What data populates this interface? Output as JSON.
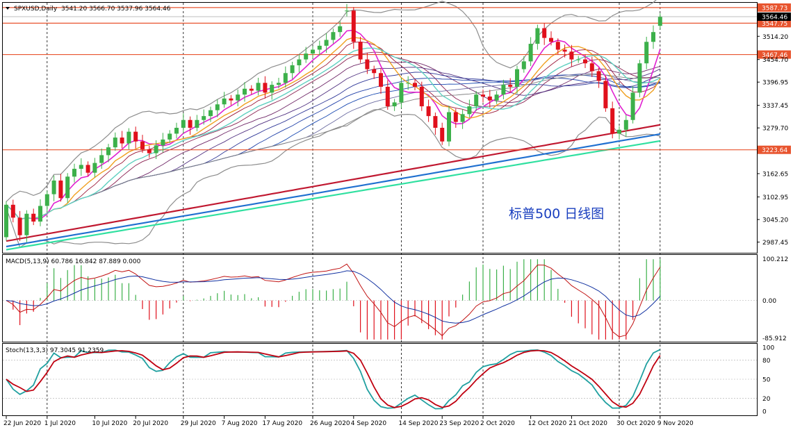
{
  "header": {
    "symbol_label": "SPXUSD,Daily",
    "ohlc_label": "3541.20 3566.70 3537.96 3564.46",
    "collapse_icon": "triangle-down-icon"
  },
  "annotation": "标普500 日线图",
  "colors": {
    "bull": "#3cb04a",
    "bear": "#e0101c",
    "hline": "#e8542e",
    "ma_magenta": "#e020d0",
    "ma_orange": "#f0a020",
    "ma_cyan": "#60d0c0",
    "ma_200_red": "#c01830",
    "ma_blue": "#2070d0",
    "ma_green": "#30e0a0",
    "bollinger": "#8c8c8c",
    "macd_signal": "#c01010",
    "macd_line": "#1030a0",
    "stoch_k": "#20a0a0",
    "stoch_d": "#c00010"
  },
  "chart_data": {
    "type": "candlestick",
    "title": "SPXUSD,Daily",
    "price_axis": {
      "ylim": [
        2960,
        3600
      ],
      "ticks": [
        "3514.20",
        "3454.70",
        "3396.95",
        "3337.45",
        "3279.70",
        "3162.65",
        "3102.95",
        "3045.20",
        "2987.45"
      ]
    },
    "horizontal_lines": [
      {
        "value": 3587.73,
        "label": "3587.73"
      },
      {
        "value": 3547.75,
        "label": "3547.75"
      },
      {
        "value": 3467.46,
        "label": "3467.46"
      },
      {
        "value": 3223.64,
        "label": "3223.64"
      }
    ],
    "current_price": {
      "value": 3564.46,
      "label": "3564.46"
    },
    "x_axis_labels": [
      "22 Jun 2020",
      "1 Jul 2020",
      "10 Jul 2020",
      "20 Jul 2020",
      "29 Jul 2020",
      "7 Aug 2020",
      "17 Aug 2020",
      "26 Aug 2020",
      "4 Sep 2020",
      "14 Sep 2020",
      "23 Sep 2020",
      "2 Oct 2020",
      "12 Oct 2020",
      "21 Oct 2020",
      "30 Oct 2020",
      "9 Nov 2020"
    ],
    "closes": [
      3083,
      3050,
      3005,
      3060,
      3040,
      3080,
      3110,
      3145,
      3100,
      3155,
      3175,
      3185,
      3165,
      3190,
      3210,
      3230,
      3255,
      3240,
      3270,
      3245,
      3225,
      3215,
      3235,
      3250,
      3265,
      3280,
      3300,
      3280,
      3300,
      3310,
      3325,
      3340,
      3355,
      3350,
      3365,
      3380,
      3375,
      3395,
      3370,
      3390,
      3395,
      3420,
      3440,
      3455,
      3470,
      3480,
      3490,
      3505,
      3525,
      3540,
      3580,
      3500,
      3455,
      3430,
      3420,
      3385,
      3335,
      3345,
      3395,
      3395,
      3385,
      3335,
      3310,
      3280,
      3245,
      3320,
      3295,
      3315,
      3335,
      3365,
      3360,
      3350,
      3365,
      3390,
      3385,
      3430,
      3450,
      3495,
      3535,
      3510,
      3500,
      3480,
      3475,
      3455,
      3455,
      3445,
      3425,
      3400,
      3330,
      3265,
      3275,
      3300,
      3370,
      3445,
      3500,
      3525,
      3564
    ],
    "opens": [
      3000,
      3083,
      3050,
      3005,
      3060,
      3040,
      3080,
      3110,
      3145,
      3100,
      3155,
      3175,
      3185,
      3165,
      3190,
      3210,
      3230,
      3255,
      3240,
      3270,
      3245,
      3225,
      3215,
      3235,
      3250,
      3265,
      3280,
      3300,
      3280,
      3300,
      3310,
      3325,
      3340,
      3355,
      3350,
      3365,
      3380,
      3375,
      3395,
      3370,
      3390,
      3395,
      3420,
      3440,
      3455,
      3470,
      3480,
      3490,
      3505,
      3525,
      3580,
      3580,
      3500,
      3455,
      3430,
      3420,
      3385,
      3335,
      3345,
      3395,
      3395,
      3385,
      3335,
      3310,
      3280,
      3245,
      3320,
      3295,
      3315,
      3335,
      3365,
      3360,
      3350,
      3365,
      3390,
      3385,
      3430,
      3450,
      3495,
      3535,
      3510,
      3500,
      3480,
      3475,
      3455,
      3455,
      3445,
      3425,
      3400,
      3330,
      3265,
      3275,
      3300,
      3370,
      3445,
      3500,
      3541
    ],
    "macd_panel": {
      "label": "MACD(5,13,9) 60.786 16.842 87.889 0.000",
      "ylim": [
        -95,
        105
      ],
      "ticks": [
        "100.212",
        "0.00",
        "-85.912"
      ]
    },
    "stoch_panel": {
      "label": "Stoch(13,3,3) 97.3045 91.2359",
      "ylim": [
        0,
        100
      ],
      "ticks": [
        "100",
        "80",
        "50",
        "20",
        "0"
      ]
    }
  }
}
